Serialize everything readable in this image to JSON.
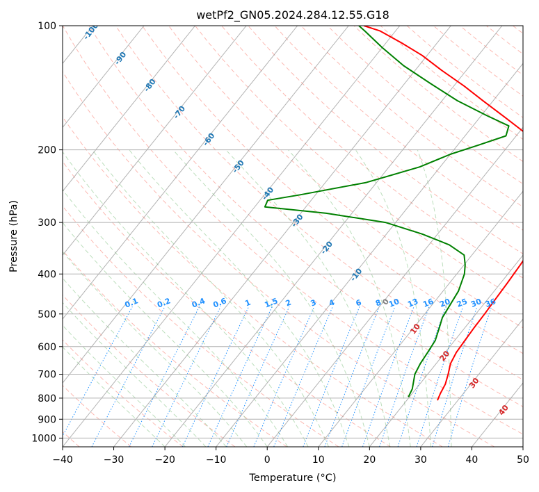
{
  "chart_data": {
    "type": "line",
    "title": "wetPf2_GN05.2024.284.12.55.G18",
    "xlabel": "Temperature (°C)",
    "ylabel": "Pressure (hPa)",
    "xlim": [
      -40,
      50
    ],
    "ylim": [
      1050,
      100
    ],
    "y_scale": "log",
    "grid": true,
    "x_ticks": [
      -40,
      -30,
      -20,
      -10,
      0,
      10,
      20,
      30,
      40,
      50
    ],
    "y_ticks": [
      1000,
      900,
      800,
      700,
      600,
      500,
      400,
      300,
      200,
      100
    ],
    "colors": {
      "temperature": "#ff0000",
      "dewpoint": "#008000",
      "isotherm_labels": "#1f77b4",
      "mixing_ratio": "#1e90ff",
      "dry_adiabats": "#fa8072",
      "moist_adiabats": "#90c890",
      "isotherm_lines": "#808080"
    },
    "series": [
      {
        "name": "temperature",
        "points": [
          [
            26.0,
            810
          ],
          [
            25.5,
            780
          ],
          [
            25.0,
            740
          ],
          [
            24.0,
            700
          ],
          [
            22.8,
            660
          ],
          [
            22.2,
            620
          ],
          [
            22.0,
            580
          ],
          [
            21.8,
            540
          ],
          [
            21.7,
            500
          ],
          [
            21.5,
            460
          ],
          [
            21.3,
            420
          ],
          [
            21.0,
            380
          ],
          [
            20.5,
            340
          ],
          [
            19.5,
            300
          ],
          [
            17.5,
            265
          ],
          [
            15.0,
            240
          ],
          [
            11.0,
            215
          ],
          [
            6.0,
            195
          ],
          [
            0.5,
            180
          ],
          [
            -5.0,
            167
          ],
          [
            -12.0,
            152
          ],
          [
            -18.0,
            140
          ],
          [
            -25.0,
            128
          ],
          [
            -31.0,
            118
          ],
          [
            -37.0,
            110
          ],
          [
            -43.0,
            103
          ],
          [
            -47.0,
            100
          ]
        ]
      },
      {
        "name": "dewpoint",
        "points": [
          [
            19.8,
            795
          ],
          [
            19.3,
            760
          ],
          [
            17.5,
            700
          ],
          [
            16.9,
            660
          ],
          [
            16.6,
            620
          ],
          [
            16.2,
            580
          ],
          [
            15.0,
            540
          ],
          [
            14.0,
            510
          ],
          [
            13.6,
            480
          ],
          [
            13.0,
            440
          ],
          [
            11.5,
            400
          ],
          [
            10.2,
            380
          ],
          [
            8.5,
            360
          ],
          [
            4.0,
            340
          ],
          [
            -3.0,
            320
          ],
          [
            -12.0,
            300
          ],
          [
            -25.0,
            285
          ],
          [
            -38.0,
            275
          ],
          [
            -38.5,
            265
          ],
          [
            -33.0,
            257
          ],
          [
            -22.0,
            240
          ],
          [
            -14.0,
            220
          ],
          [
            -10.0,
            205
          ],
          [
            -6.0,
            195
          ],
          [
            -2.0,
            185
          ],
          [
            -3.0,
            175
          ],
          [
            -9.0,
            165
          ],
          [
            -17.0,
            152
          ],
          [
            -25.0,
            138
          ],
          [
            -33.0,
            125
          ],
          [
            -40.0,
            113
          ],
          [
            -46.0,
            103
          ],
          [
            -48.0,
            100
          ]
        ]
      }
    ],
    "isotherm_labels": [
      "-100",
      "-90",
      "-80",
      "-70",
      "-60",
      "-50",
      "-40",
      "-30",
      "-20",
      "-10",
      "0",
      "10",
      "20",
      "30",
      "40"
    ],
    "mixing_ratio_labels": [
      "0.1",
      "0.2",
      "0.4",
      "0.6",
      "1",
      "1.5",
      "2",
      "3",
      "4",
      "6",
      "8",
      "10",
      "13",
      "16",
      "20",
      "25",
      "30",
      "36"
    ]
  }
}
